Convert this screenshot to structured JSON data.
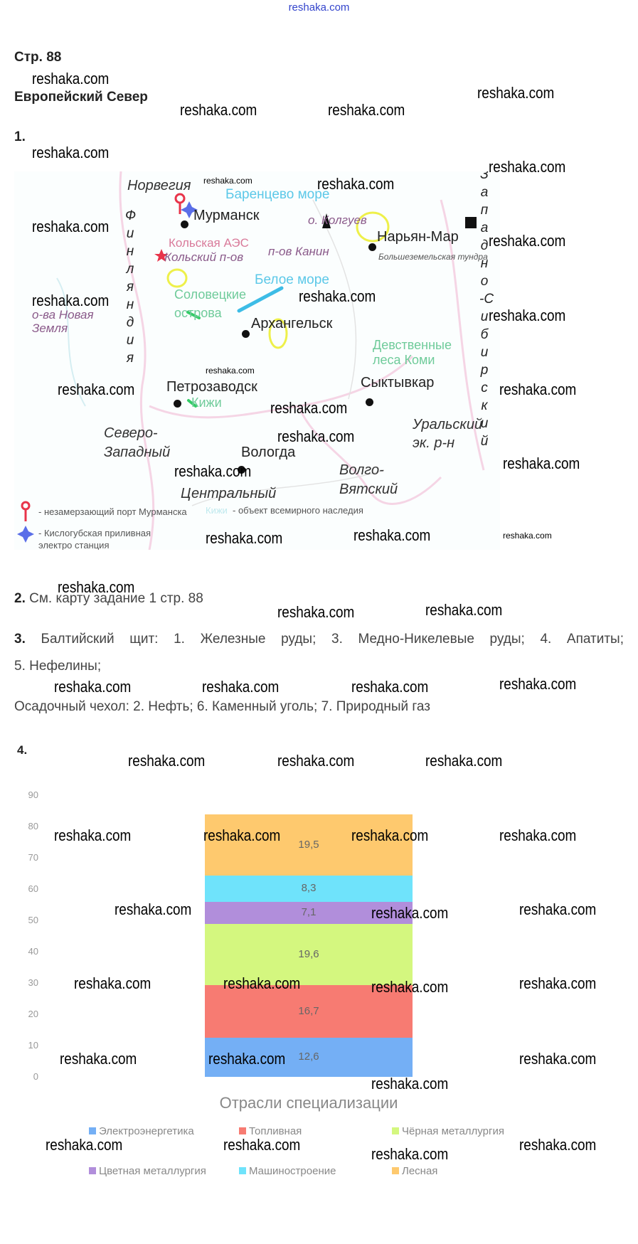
{
  "top_link": "reshaka.com",
  "watermark": "reshaka.com",
  "page_ref": "Стр. 88",
  "section_title": "Европейский Север",
  "task1": {
    "number": "1.",
    "map": {
      "labels": {
        "norway": "Норвегия",
        "finland": "Финляндия",
        "west_siberian": "Западно-Сибирский",
        "barents_sea": "Баренцево море",
        "murmansk": "Мурманск",
        "kolguev": "о. Колгуев",
        "naryan_mar": "Нарьян-Мар",
        "kola_npp": "Кольская АЭС",
        "kola_peninsula": "Кольский п-ов",
        "kanin": "п-ов Канин",
        "bolshezemelskaya": "Большеземельская тундра",
        "white_sea": "Белое море",
        "solovetsky_1": "Соловецкие",
        "solovetsky_2": "острова",
        "arkhangelsk": "Архангельск",
        "novaya_zemlya_1": "о-ва Новая",
        "novaya_zemlya_2": "Земля",
        "komi_forests_1": "Девственные",
        "komi_forests_2": "леса Коми",
        "petrozavodsk": "Петрозаводск",
        "kizhi": "Кижи",
        "syktyvkar": "Сыктывкар",
        "ural_1": "Уральский",
        "ural_2": "эк. р-н",
        "northwest_1": "Северо-",
        "northwest_2": "Западный",
        "vologda": "Вологда",
        "volga_vyatka_1": "Волго-",
        "volga_vyatka_2": "Вятский",
        "central": "Центральный"
      },
      "legend": {
        "port": "- незамерзающий порт Мурманска",
        "heritage_sample": "Кижи",
        "heritage": "- объект всемирного наследия",
        "tidal_1": "- Кислогубская приливная",
        "tidal_2": "электро станция"
      }
    }
  },
  "task2": {
    "number": "2.",
    "text": "См. карту задание 1 стр. 88"
  },
  "task3": {
    "number": "3.",
    "line1": "Балтийский щит: 1. Железные руды; 3. Медно-Никелевые руды; 4. Апатиты;",
    "line2": "5. Нефелины;",
    "line3": "Осадочный чехол: 2. Нефть; 6. Каменный уголь; 7. Природный газ"
  },
  "task4": {
    "number": "4."
  },
  "chart_data": {
    "type": "bar",
    "stacked": true,
    "title": "Отрасли специализации",
    "ylim": [
      0,
      90
    ],
    "yticks": [
      0,
      10,
      20,
      30,
      40,
      50,
      60,
      70,
      80,
      90
    ],
    "legend_position": "bottom",
    "series": [
      {
        "name": "Электроэнергетика",
        "values": [
          12.6
        ],
        "label": "12,6",
        "color": "#74aff5"
      },
      {
        "name": "Топливная",
        "values": [
          16.7
        ],
        "label": "16,7",
        "color": "#f77b72"
      },
      {
        "name": "Чёрная металлургия",
        "values": [
          19.6
        ],
        "label": "19,6",
        "color": "#d4f77f"
      },
      {
        "name": "Цветная металлургия",
        "values": [
          7.1
        ],
        "label": "7,1",
        "color": "#b18edb"
      },
      {
        "name": "Машиностроение",
        "values": [
          8.3
        ],
        "label": "8,3",
        "color": "#6fe3fb"
      },
      {
        "name": "Лесная",
        "values": [
          19.5
        ],
        "label": "19,5",
        "color": "#fec96e"
      }
    ]
  }
}
